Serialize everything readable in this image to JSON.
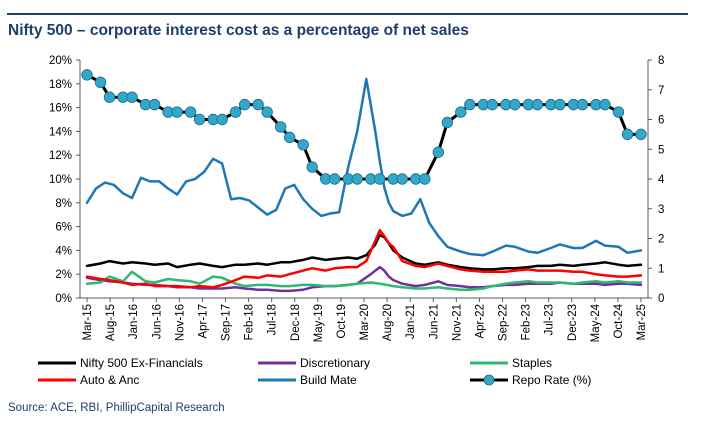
{
  "title": "Nifty 500 – corporate interest cost as a percentage of net sales",
  "source": "Source: ACE, RBI, PhillipCapital Research",
  "chart_data": {
    "type": "line",
    "title": "Nifty 500 – corporate interest cost as a percentage of net sales",
    "y_left_ticks": [
      "0%",
      "2%",
      "4%",
      "6%",
      "8%",
      "10%",
      "12%",
      "14%",
      "16%",
      "18%",
      "20%"
    ],
    "y_left_range": [
      0,
      20
    ],
    "y_right_ticks": [
      "0",
      "1",
      "2",
      "3",
      "4",
      "5",
      "6",
      "7",
      "8"
    ],
    "y_right_range": [
      0,
      8
    ],
    "x_tick_labels": [
      "Mar-15",
      "Aug-15",
      "Jan-16",
      "Jun-16",
      "Nov-16",
      "Apr-17",
      "Sep-17",
      "Feb-18",
      "Jul-18",
      "Dec-18",
      "May-19",
      "Oct-19",
      "Mar-20",
      "Aug-20",
      "Jan-21",
      "Jun-21",
      "Nov-21",
      "Apr-22",
      "Sep-22",
      "Feb-23",
      "Jul-23",
      "Dec-23",
      "May-24",
      "Oct-24",
      "Mar-25"
    ],
    "x_range": [
      0,
      123
    ],
    "legend_position": "bottom",
    "gridlines": false,
    "series": [
      {
        "name": "Nifty 500 Ex-Financials",
        "axis": "left",
        "color": "#000000",
        "x": [
          0,
          3,
          5,
          8,
          10,
          13,
          15,
          18,
          20,
          23,
          25,
          28,
          30,
          33,
          35,
          38,
          40,
          43,
          45,
          48,
          50,
          53,
          55,
          58,
          60,
          62,
          64,
          65,
          66,
          67,
          68,
          70,
          73,
          75,
          78,
          80,
          83,
          85,
          88,
          90,
          93,
          95,
          98,
          100,
          103,
          105,
          108,
          110,
          113,
          115,
          118,
          120,
          123
        ],
        "values": [
          2.7,
          2.9,
          3.1,
          2.9,
          3.0,
          2.9,
          2.8,
          2.9,
          2.6,
          2.8,
          2.9,
          2.7,
          2.6,
          2.8,
          2.8,
          2.9,
          2.8,
          3.0,
          3.0,
          3.2,
          3.4,
          3.2,
          3.3,
          3.4,
          3.3,
          3.6,
          4.5,
          5.3,
          5.1,
          4.6,
          4.0,
          3.4,
          2.9,
          2.8,
          3.0,
          2.8,
          2.6,
          2.5,
          2.4,
          2.4,
          2.5,
          2.5,
          2.6,
          2.7,
          2.7,
          2.8,
          2.7,
          2.8,
          2.9,
          3.0,
          2.8,
          2.7,
          2.8
        ]
      },
      {
        "name": "Discretionary",
        "axis": "left",
        "color": "#7030a0",
        "x": [
          0,
          3,
          5,
          8,
          10,
          13,
          15,
          18,
          20,
          23,
          25,
          28,
          30,
          33,
          35,
          38,
          40,
          43,
          45,
          48,
          50,
          53,
          55,
          58,
          60,
          63,
          65,
          66,
          67,
          68,
          70,
          73,
          75,
          78,
          80,
          83,
          85,
          88,
          90,
          93,
          95,
          98,
          100,
          103,
          105,
          108,
          110,
          113,
          115,
          118,
          120,
          123
        ],
        "values": [
          1.7,
          1.5,
          1.4,
          1.3,
          1.2,
          1.1,
          1.1,
          1.0,
          0.9,
          0.9,
          0.8,
          0.8,
          0.8,
          0.9,
          0.8,
          0.7,
          0.7,
          0.6,
          0.6,
          0.7,
          0.9,
          1.0,
          1.0,
          1.1,
          1.2,
          2.0,
          2.6,
          2.3,
          1.8,
          1.5,
          1.2,
          1.0,
          1.1,
          1.4,
          1.1,
          1.0,
          0.9,
          0.9,
          1.0,
          1.1,
          1.1,
          1.2,
          1.2,
          1.2,
          1.3,
          1.2,
          1.2,
          1.2,
          1.1,
          1.2,
          1.2,
          1.1
        ]
      },
      {
        "name": "Staples",
        "axis": "left",
        "color": "#2eb872",
        "x": [
          0,
          3,
          5,
          8,
          10,
          13,
          15,
          18,
          20,
          23,
          25,
          28,
          30,
          33,
          35,
          38,
          40,
          43,
          45,
          48,
          50,
          53,
          55,
          58,
          60,
          63,
          65,
          68,
          70,
          73,
          75,
          78,
          80,
          83,
          85,
          88,
          90,
          93,
          95,
          98,
          100,
          103,
          105,
          108,
          110,
          113,
          115,
          118,
          120,
          123
        ],
        "values": [
          1.2,
          1.3,
          1.8,
          1.4,
          2.2,
          1.4,
          1.3,
          1.6,
          1.5,
          1.4,
          1.2,
          1.8,
          1.7,
          1.2,
          1.0,
          1.1,
          1.1,
          1.0,
          1.0,
          1.1,
          1.1,
          1.0,
          1.0,
          1.1,
          1.2,
          1.3,
          1.2,
          1.0,
          0.9,
          0.8,
          0.8,
          0.9,
          0.8,
          0.7,
          0.7,
          0.8,
          1.0,
          1.2,
          1.3,
          1.4,
          1.3,
          1.3,
          1.3,
          1.2,
          1.3,
          1.4,
          1.3,
          1.4,
          1.3,
          1.3
        ]
      },
      {
        "name": "Auto & Anc",
        "axis": "left",
        "color": "#ff0000",
        "x": [
          0,
          3,
          5,
          8,
          10,
          13,
          15,
          18,
          20,
          23,
          25,
          28,
          30,
          33,
          35,
          38,
          40,
          43,
          45,
          48,
          50,
          53,
          55,
          58,
          60,
          62,
          64,
          65,
          66,
          67,
          68,
          70,
          73,
          75,
          78,
          80,
          83,
          85,
          88,
          90,
          93,
          95,
          98,
          100,
          103,
          105,
          108,
          110,
          113,
          115,
          118,
          120,
          123
        ],
        "values": [
          1.8,
          1.6,
          1.5,
          1.3,
          1.1,
          1.2,
          1.0,
          1.0,
          1.0,
          0.9,
          1.0,
          0.9,
          1.1,
          1.5,
          1.8,
          1.7,
          1.9,
          1.8,
          2.0,
          2.3,
          2.5,
          2.3,
          2.5,
          2.6,
          2.6,
          3.1,
          4.8,
          5.7,
          5.2,
          4.6,
          4.3,
          3.1,
          2.7,
          2.6,
          2.9,
          2.7,
          2.4,
          2.3,
          2.2,
          2.2,
          2.2,
          2.3,
          2.4,
          2.3,
          2.3,
          2.3,
          2.2,
          2.2,
          2.0,
          1.9,
          1.8,
          1.8,
          1.9
        ]
      },
      {
        "name": "Build Mate",
        "axis": "left",
        "color": "#1f77b4",
        "x": [
          0,
          2,
          4,
          6,
          8,
          10,
          12,
          14,
          16,
          18,
          20,
          22,
          24,
          26,
          28,
          30,
          32,
          34,
          36,
          38,
          40,
          42,
          44,
          46,
          48,
          50,
          52,
          54,
          56,
          58,
          60,
          62,
          64,
          65,
          66,
          67,
          68,
          70,
          72,
          74,
          76,
          78,
          80,
          83,
          85,
          88,
          90,
          93,
          95,
          98,
          100,
          103,
          105,
          108,
          110,
          113,
          115,
          118,
          120,
          123
        ],
        "values": [
          8.0,
          9.2,
          9.7,
          9.5,
          8.8,
          8.4,
          10.1,
          9.8,
          9.8,
          9.2,
          8.7,
          9.8,
          10.0,
          10.6,
          11.7,
          11.3,
          8.3,
          8.4,
          8.2,
          7.6,
          7.0,
          7.4,
          9.2,
          9.5,
          8.3,
          7.5,
          6.9,
          7.1,
          7.2,
          11.0,
          14.0,
          18.4,
          14.0,
          11.5,
          9.3,
          8.0,
          7.3,
          6.9,
          7.1,
          8.3,
          6.3,
          5.2,
          4.3,
          3.9,
          3.7,
          3.6,
          3.9,
          4.4,
          4.3,
          3.9,
          3.8,
          4.2,
          4.5,
          4.2,
          4.2,
          4.8,
          4.4,
          4.3,
          3.8,
          4.0
        ]
      },
      {
        "name": "Repo Rate (%)",
        "axis": "right",
        "color": "#000000",
        "marker_color": "#33a7c9",
        "x": [
          0,
          3,
          5,
          8,
          10,
          13,
          15,
          18,
          20,
          23,
          25,
          28,
          30,
          33,
          35,
          38,
          40,
          43,
          45,
          48,
          50,
          53,
          55,
          58,
          60,
          63,
          65,
          68,
          70,
          73,
          75,
          78,
          80,
          83,
          85,
          88,
          90,
          93,
          95,
          98,
          100,
          103,
          105,
          108,
          110,
          113,
          115,
          118,
          120,
          123
        ],
        "values": [
          7.5,
          7.25,
          6.75,
          6.75,
          6.75,
          6.5,
          6.5,
          6.25,
          6.25,
          6.25,
          6.0,
          6.0,
          6.0,
          6.25,
          6.5,
          6.5,
          6.25,
          5.75,
          5.4,
          5.15,
          4.4,
          4.0,
          4.0,
          4.0,
          4.0,
          4.0,
          4.0,
          4.0,
          4.0,
          4.0,
          4.0,
          4.9,
          5.9,
          6.25,
          6.5,
          6.5,
          6.5,
          6.5,
          6.5,
          6.5,
          6.5,
          6.5,
          6.5,
          6.5,
          6.5,
          6.5,
          6.5,
          6.25,
          5.5,
          5.5
        ]
      }
    ]
  }
}
